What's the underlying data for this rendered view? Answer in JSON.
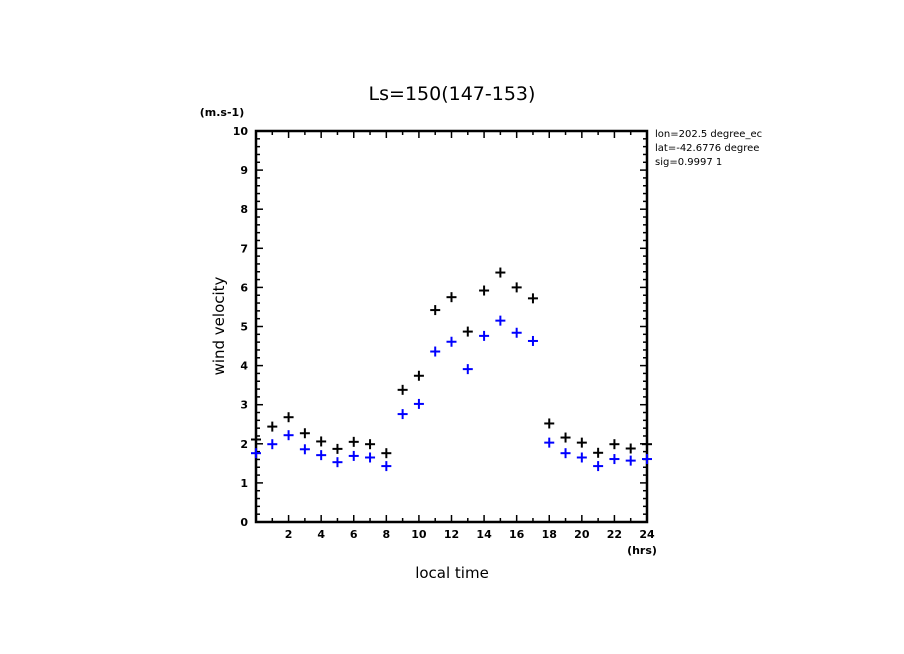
{
  "chart_data": {
    "type": "scatter",
    "title": "Ls=150(147-153)",
    "xlabel": "local time",
    "ylabel": "wind velocity",
    "x_unit": "(hrs)",
    "y_unit": "(m.s-1)",
    "xlim": [
      0,
      24
    ],
    "ylim": [
      0,
      10
    ],
    "x_ticks": [
      "2",
      "4",
      "6",
      "8",
      "10",
      "12",
      "14",
      "16",
      "18",
      "20",
      "22",
      "24"
    ],
    "y_ticks": [
      "0",
      "1",
      "2",
      "3",
      "4",
      "5",
      "6",
      "7",
      "8",
      "9",
      "10"
    ],
    "grid": false,
    "annotations": [
      "lon=202.5 degree_ec",
      "lat=-42.6776 degree",
      "sig=0.9997 1"
    ],
    "x": [
      0,
      1,
      2,
      3,
      4,
      5,
      6,
      7,
      8,
      9,
      10,
      11,
      12,
      13,
      14,
      15,
      16,
      17,
      18,
      19,
      20,
      21,
      22,
      23,
      24
    ],
    "series": [
      {
        "name": "black",
        "color": "#000000",
        "marker": "+",
        "values": [
          2.11,
          2.44,
          2.68,
          2.27,
          2.06,
          1.87,
          2.05,
          1.99,
          1.76,
          3.38,
          3.74,
          5.42,
          5.75,
          4.87,
          5.92,
          6.38,
          6.0,
          5.72,
          2.52,
          2.16,
          2.03,
          1.77,
          1.99,
          1.88,
          1.99
        ]
      },
      {
        "name": "blue",
        "color": "#0000ff",
        "marker": "+",
        "values": [
          1.76,
          1.99,
          2.22,
          1.86,
          1.71,
          1.53,
          1.69,
          1.65,
          1.43,
          2.76,
          3.02,
          4.36,
          4.61,
          3.91,
          4.76,
          5.15,
          4.84,
          4.63,
          2.03,
          1.76,
          1.65,
          1.43,
          1.61,
          1.57,
          1.61
        ]
      }
    ]
  }
}
